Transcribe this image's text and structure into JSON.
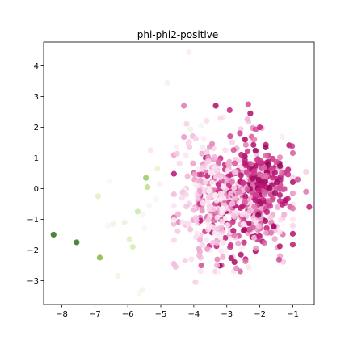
{
  "chart_data": {
    "type": "scatter",
    "title": "phi-phi2-positive",
    "xlabel": "",
    "ylabel": "",
    "xlim": [
      -8.55,
      -0.35
    ],
    "ylim": [
      -3.78,
      4.78
    ],
    "xticks": [
      -8,
      -7,
      -6,
      -5,
      -4,
      -3,
      -2,
      -1
    ],
    "yticks": [
      -3,
      -2,
      -1,
      0,
      1,
      2,
      3,
      4
    ],
    "grid": false,
    "colormap": "PiYG",
    "cluster_color_scale": "color_value: 0 = darkest magenta, 0.5 = near white, 1 = darkest green",
    "colors": {
      "green_dark": "#276419",
      "green_mid": "#b8e186",
      "pale_green": "#e6f5d0",
      "white_pink": "#fde0ef",
      "pink_light": "#f1b6da",
      "pink_mid": "#de77ae",
      "magenta": "#c51b7d",
      "magenta_dark": "#8e0152"
    },
    "outliers": [
      {
        "x": -8.25,
        "y": -1.5,
        "color_value": 0.98
      },
      {
        "x": -7.55,
        "y": -1.75,
        "color_value": 0.97
      },
      {
        "x": -6.85,
        "y": -2.25,
        "color_value": 0.8
      },
      {
        "x": -6.9,
        "y": -0.25,
        "color_value": 0.62
      },
      {
        "x": -6.45,
        "y": -1.15,
        "color_value": 0.55
      },
      {
        "x": -6.1,
        "y": -1.1,
        "color_value": 0.58
      },
      {
        "x": -5.95,
        "y": -1.65,
        "color_value": 0.62
      },
      {
        "x": -5.85,
        "y": -1.9,
        "color_value": 0.64
      },
      {
        "x": -6.6,
        "y": -1.2,
        "color_value": 0.52
      },
      {
        "x": -6.55,
        "y": 0.25,
        "color_value": 0.5
      },
      {
        "x": -5.45,
        "y": 0.35,
        "color_value": 0.76
      },
      {
        "x": -5.4,
        "y": 0.05,
        "color_value": 0.7
      },
      {
        "x": -5.7,
        "y": -0.75,
        "color_value": 0.66
      },
      {
        "x": -5.35,
        "y": -0.55,
        "color_value": 0.52
      },
      {
        "x": -5.15,
        "y": -0.35,
        "color_value": 0.5
      },
      {
        "x": -5.1,
        "y": 0.65,
        "color_value": 0.6
      },
      {
        "x": -6.3,
        "y": -2.85,
        "color_value": 0.55
      },
      {
        "x": -5.65,
        "y": -3.4,
        "color_value": 0.52
      },
      {
        "x": -5.55,
        "y": -3.3,
        "color_value": 0.54
      },
      {
        "x": -4.8,
        "y": 3.45,
        "color_value": 0.46
      },
      {
        "x": -4.15,
        "y": 4.45,
        "color_value": 0.45
      },
      {
        "x": -5.3,
        "y": 1.25,
        "color_value": 0.4
      },
      {
        "x": -4.1,
        "y": 1.95,
        "color_value": 0.55
      },
      {
        "x": -4.6,
        "y": -2.45,
        "color_value": 0.3
      },
      {
        "x": -4.55,
        "y": -2.55,
        "color_value": 0.32
      },
      {
        "x": -3.95,
        "y": -3.05,
        "color_value": 0.36
      },
      {
        "x": -0.5,
        "y": -0.6,
        "color_value": 0.1
      },
      {
        "x": -0.6,
        "y": -0.1,
        "color_value": 0.2
      },
      {
        "x": -0.85,
        "y": 0.3,
        "color_value": 0.15
      },
      {
        "x": -0.6,
        "y": 0.55,
        "color_value": 0.35
      },
      {
        "x": -2.35,
        "y": 2.75,
        "color_value": 0.15
      },
      {
        "x": -2.0,
        "y": 2.0,
        "color_value": 0.1
      },
      {
        "x": -4.3,
        "y": 2.7,
        "color_value": 0.2
      },
      {
        "x": -3.3,
        "y": -2.5,
        "color_value": 0.3
      },
      {
        "x": -4.0,
        "y": -0.7,
        "color_value": 0.3
      },
      {
        "x": -5.55,
        "y": -0.85,
        "color_value": 0.48
      },
      {
        "x": -5.5,
        "y": -1.3,
        "color_value": 0.5
      },
      {
        "x": -5.05,
        "y": 0.15,
        "color_value": 0.46
      }
    ],
    "clusters": [
      {
        "cx": -2.6,
        "cy": -0.3,
        "sx": 0.75,
        "sy": 0.95,
        "n": 470,
        "color_min": 0.03,
        "color_max": 0.45
      },
      {
        "cx": -1.9,
        "cy": 0.2,
        "sx": 0.35,
        "sy": 0.6,
        "n": 140,
        "color_min": 0.0,
        "color_max": 0.22
      },
      {
        "cx": -3.7,
        "cy": -0.3,
        "sx": 0.5,
        "sy": 1.2,
        "n": 120,
        "color_min": 0.25,
        "color_max": 0.48
      }
    ]
  }
}
